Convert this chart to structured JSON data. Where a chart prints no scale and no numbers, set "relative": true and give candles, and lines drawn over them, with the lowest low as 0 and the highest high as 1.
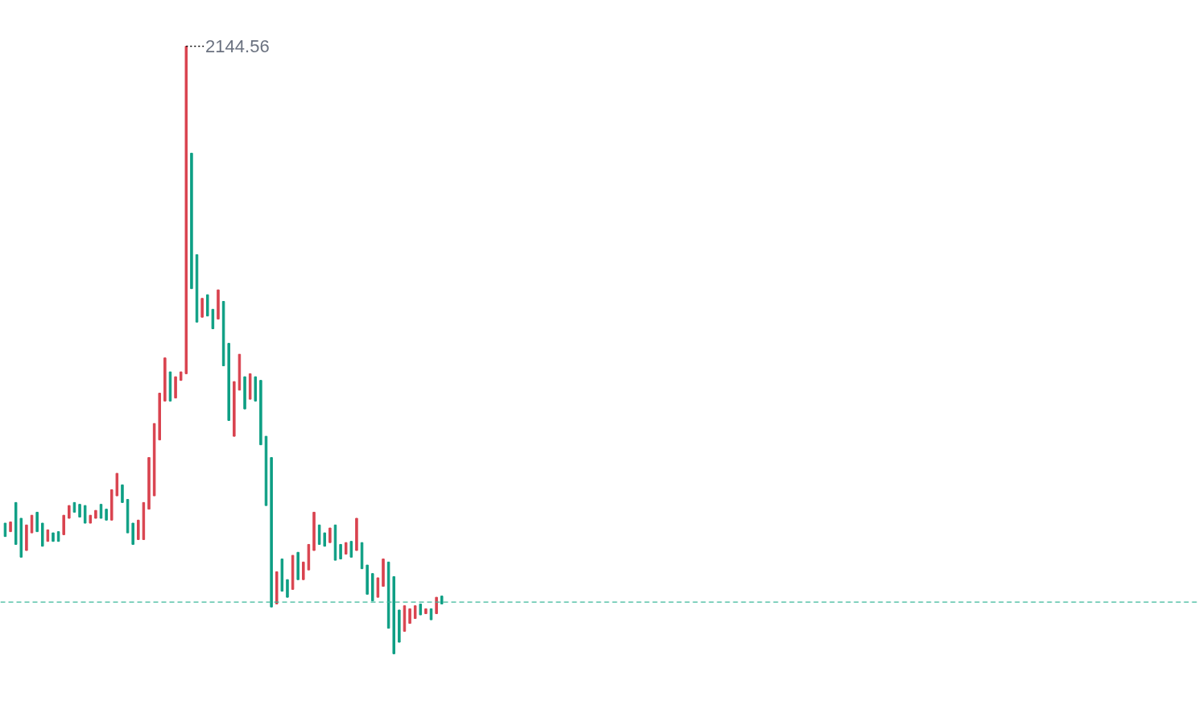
{
  "chart_data": {
    "type": "candlestick",
    "relative": true,
    "grid": false,
    "categories": [
      null,
      null,
      null,
      null,
      null,
      null,
      null,
      null,
      null,
      null,
      null,
      null,
      null,
      null,
      null,
      null,
      null,
      null,
      null,
      null,
      null,
      null,
      null,
      null,
      null,
      null,
      null,
      null,
      null,
      null,
      null,
      null,
      null,
      null,
      null,
      null,
      null,
      null,
      null,
      null,
      null,
      null,
      null,
      null,
      null,
      null,
      null,
      null,
      null,
      null,
      null,
      null,
      null,
      null,
      null,
      null,
      null,
      null,
      null,
      null,
      null,
      null,
      null,
      null,
      null,
      null,
      null,
      null,
      null,
      null,
      null,
      null,
      null,
      null,
      null,
      null,
      null,
      null,
      null,
      null,
      null,
      null,
      null
    ],
    "ohlc": [
      [
        0.215,
        0.215,
        0.193,
        0.193
      ],
      [
        0.201,
        0.217,
        0.201,
        0.217
      ],
      [
        0.249,
        0.249,
        0.18,
        0.18
      ],
      [
        0.223,
        0.223,
        0.159,
        0.159
      ],
      [
        0.17,
        0.212,
        0.17,
        0.212
      ],
      [
        0.199,
        0.228,
        0.199,
        0.228
      ],
      [
        0.233,
        0.233,
        0.201,
        0.201
      ],
      [
        0.215,
        0.215,
        0.177,
        0.177
      ],
      [
        0.185,
        0.204,
        0.185,
        0.204
      ],
      [
        0.199,
        0.199,
        0.185,
        0.185
      ],
      [
        0.201,
        0.201,
        0.185,
        0.185
      ],
      [
        0.196,
        0.228,
        0.196,
        0.228
      ],
      [
        0.223,
        0.244,
        0.223,
        0.244
      ],
      [
        0.249,
        0.249,
        0.233,
        0.233
      ],
      [
        0.246,
        0.246,
        0.225,
        0.225
      ],
      [
        0.244,
        0.244,
        0.215,
        0.215
      ],
      [
        0.215,
        0.228,
        0.215,
        0.228
      ],
      [
        0.223,
        0.236,
        0.223,
        0.236
      ],
      [
        0.246,
        0.246,
        0.223,
        0.223
      ],
      [
        0.238,
        0.238,
        0.22,
        0.22
      ],
      [
        0.22,
        0.27,
        0.22,
        0.27
      ],
      [
        0.26,
        0.297,
        0.26,
        0.297
      ],
      [
        0.278,
        0.278,
        0.249,
        0.249
      ],
      [
        0.254,
        0.254,
        0.199,
        0.199
      ],
      [
        0.215,
        0.215,
        0.18,
        0.18
      ],
      [
        0.188,
        0.22,
        0.188,
        0.22
      ],
      [
        0.188,
        0.249,
        0.188,
        0.249
      ],
      [
        0.238,
        0.323,
        0.238,
        0.323
      ],
      [
        0.26,
        0.379,
        0.26,
        0.379
      ],
      [
        0.352,
        0.429,
        0.352,
        0.429
      ],
      [
        0.416,
        0.487,
        0.416,
        0.487
      ],
      [
        0.464,
        0.464,
        0.416,
        0.416
      ],
      [
        0.421,
        0.456,
        0.421,
        0.456
      ],
      [
        0.45,
        0.464,
        0.45,
        0.464
      ],
      [
        0.461,
        1,
        0.461,
        1
      ],
      [
        0.824,
        0.824,
        0.601,
        0.601
      ],
      [
        0.657,
        0.657,
        0.546,
        0.546
      ],
      [
        0.554,
        0.585,
        0.554,
        0.585
      ],
      [
        0.591,
        0.591,
        0.556,
        0.556
      ],
      [
        0.567,
        0.567,
        0.535,
        0.535
      ],
      [
        0.551,
        0.599,
        0.551,
        0.599
      ],
      [
        0.58,
        0.58,
        0.474,
        0.474
      ],
      [
        0.511,
        0.511,
        0.384,
        0.384
      ],
      [
        0.358,
        0.448,
        0.358,
        0.448
      ],
      [
        0.434,
        0.493,
        0.434,
        0.493
      ],
      [
        0.456,
        0.456,
        0.403,
        0.403
      ],
      [
        0.419,
        0.461,
        0.419,
        0.461
      ],
      [
        0.456,
        0.456,
        0.416,
        0.416
      ],
      [
        0.45,
        0.45,
        0.344,
        0.344
      ],
      [
        0.358,
        0.358,
        0.244,
        0.244
      ],
      [
        0.323,
        0.323,
        0.077,
        0.077
      ],
      [
        0.082,
        0.135,
        0.082,
        0.135
      ],
      [
        0.156,
        0.156,
        0.103,
        0.103
      ],
      [
        0.122,
        0.122,
        0.093,
        0.093
      ],
      [
        0.106,
        0.162,
        0.106,
        0.162
      ],
      [
        0.167,
        0.167,
        0.122,
        0.122
      ],
      [
        0.122,
        0.151,
        0.122,
        0.151
      ],
      [
        0.138,
        0.18,
        0.138,
        0.18
      ],
      [
        0.17,
        0.233,
        0.17,
        0.233
      ],
      [
        0.212,
        0.212,
        0.18,
        0.18
      ],
      [
        0.199,
        0.199,
        0.177,
        0.177
      ],
      [
        0.183,
        0.207,
        0.183,
        0.207
      ],
      [
        0.212,
        0.212,
        0.154,
        0.154
      ],
      [
        0.18,
        0.18,
        0.156,
        0.156
      ],
      [
        0.164,
        0.183,
        0.164,
        0.183
      ],
      [
        0.185,
        0.185,
        0.159,
        0.159
      ],
      [
        0.17,
        0.223,
        0.17,
        0.223
      ],
      [
        0.183,
        0.183,
        0.14,
        0.14
      ],
      [
        0.146,
        0.146,
        0.098,
        0.098
      ],
      [
        0.132,
        0.132,
        0.087,
        0.087
      ],
      [
        0.093,
        0.125,
        0.093,
        0.125
      ],
      [
        0.111,
        0.156,
        0.111,
        0.156
      ],
      [
        0.151,
        0.151,
        0.042,
        0.042
      ],
      [
        0.127,
        0.127,
        0,
        0
      ],
      [
        0.072,
        0.072,
        0.019,
        0.019
      ],
      [
        0.037,
        0.079,
        0.037,
        0.079
      ],
      [
        0.05,
        0.074,
        0.05,
        0.074
      ],
      [
        0.058,
        0.079,
        0.058,
        0.079
      ],
      [
        0.082,
        0.082,
        0.064,
        0.064
      ],
      [
        0.066,
        0.074,
        0.066,
        0.074
      ],
      [
        0.074,
        0.074,
        0.056,
        0.056
      ],
      [
        0.066,
        0.093,
        0.066,
        0.093
      ],
      [
        0.095,
        0.095,
        0.082,
        0.082
      ]
    ],
    "colors": [
      "#0e9f84",
      "#d9434f",
      "#0e9f84",
      "#0e9f84",
      "#d9434f",
      "#d9434f",
      "#0e9f84",
      "#0e9f84",
      "#d9434f",
      "#0e9f84",
      "#0e9f84",
      "#d9434f",
      "#d9434f",
      "#0e9f84",
      "#0e9f84",
      "#0e9f84",
      "#d9434f",
      "#d9434f",
      "#0e9f84",
      "#0e9f84",
      "#d9434f",
      "#d9434f",
      "#0e9f84",
      "#0e9f84",
      "#0e9f84",
      "#d9434f",
      "#d9434f",
      "#d9434f",
      "#d9434f",
      "#d9434f",
      "#d9434f",
      "#0e9f84",
      "#d9434f",
      "#d9434f",
      "#d9434f",
      "#0e9f84",
      "#0e9f84",
      "#d9434f",
      "#0e9f84",
      "#0e9f84",
      "#d9434f",
      "#0e9f84",
      "#0e9f84",
      "#d9434f",
      "#d9434f",
      "#0e9f84",
      "#d9434f",
      "#0e9f84",
      "#0e9f84",
      "#0e9f84",
      "#0e9f84",
      "#d9434f",
      "#0e9f84",
      "#0e9f84",
      "#d9434f",
      "#0e9f84",
      "#d9434f",
      "#d9434f",
      "#d9434f",
      "#0e9f84",
      "#0e9f84",
      "#d9434f",
      "#0e9f84",
      "#0e9f84",
      "#d9434f",
      "#0e9f84",
      "#d9434f",
      "#0e9f84",
      "#0e9f84",
      "#0e9f84",
      "#d9434f",
      "#d9434f",
      "#0e9f84",
      "#0e9f84",
      "#0e9f84",
      "#d9434f",
      "#d9434f",
      "#d9434f",
      "#0e9f84",
      "#d9434f",
      "#0e9f84",
      "#d9434f",
      "#0e9f84"
    ],
    "ref_lines": [
      {
        "axis": "y",
        "value": 0.085,
        "color": "#3bb89a",
        "line_style": "dashed"
      }
    ],
    "annotations": [
      "2144.56"
    ]
  }
}
